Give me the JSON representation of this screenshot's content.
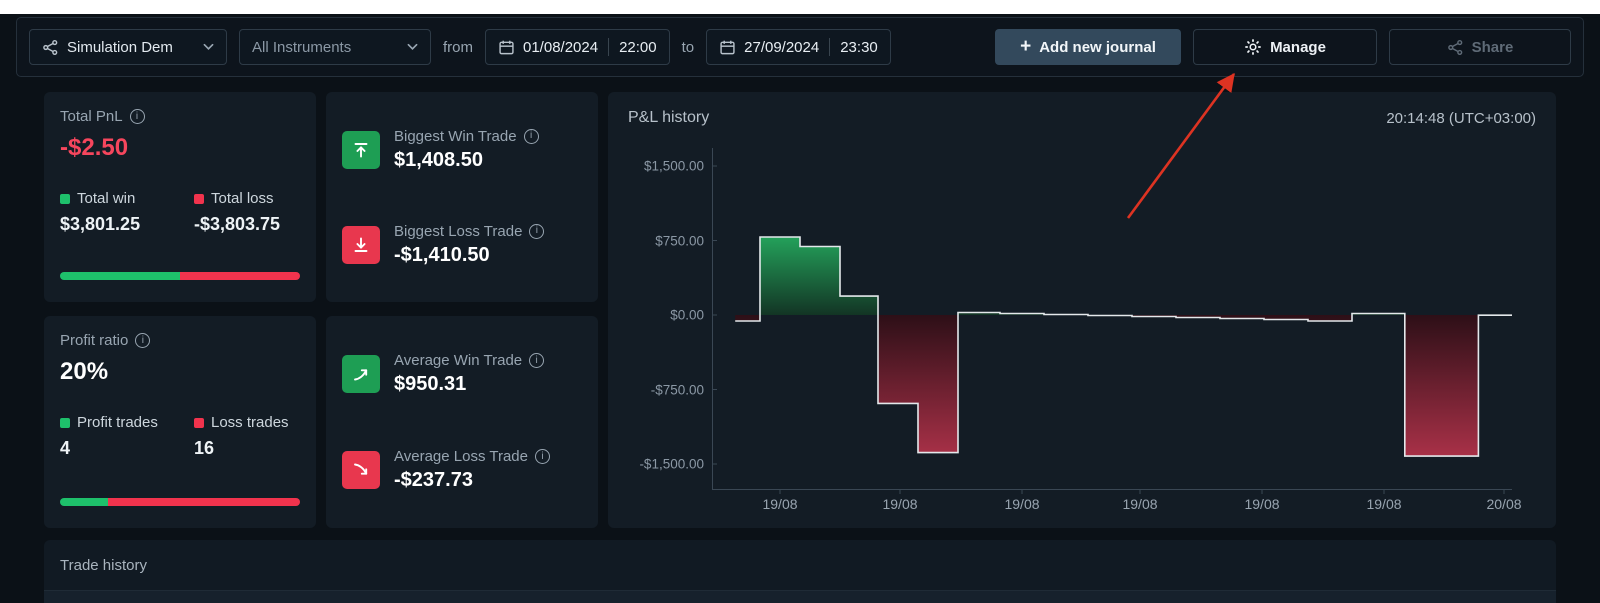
{
  "icons": {
    "info": "i",
    "plus": "+"
  },
  "toolbar": {
    "journal_select": {
      "label": "Simulation Dem"
    },
    "instrument_select": {
      "label": "All Instruments"
    },
    "from_label": "from",
    "to_label": "to",
    "date_from": {
      "date": "01/08/2024",
      "time": "22:00"
    },
    "date_to": {
      "date": "27/09/2024",
      "time": "23:30"
    },
    "add_journal_button": "Add new journal",
    "manage_button": "Manage",
    "share_button": "Share"
  },
  "cards": {
    "total_pnl": {
      "title": "Total PnL",
      "value": "-$2.50",
      "win_label": "Total win",
      "loss_label": "Total loss",
      "win_value": "$3,801.25",
      "loss_value": "-$3,803.75",
      "win_pct": 50
    },
    "profit_ratio": {
      "title": "Profit ratio",
      "value": "20%",
      "win_label": "Profit trades",
      "loss_label": "Loss trades",
      "win_value": "4",
      "loss_value": "16",
      "win_pct": 20
    },
    "biggest": {
      "win_label": "Biggest Win Trade",
      "win_value": "$1,408.50",
      "loss_label": "Biggest Loss Trade",
      "loss_value": "-$1,410.50"
    },
    "average": {
      "win_label": "Average Win Trade",
      "win_value": "$950.31",
      "loss_label": "Average Loss Trade",
      "loss_value": "-$237.73"
    }
  },
  "chart": {
    "title": "P&L history",
    "clock": "20:14:48 (UTC+03:00)"
  },
  "chart_data": {
    "type": "area",
    "title": "P&L history",
    "ylim": [
      -1800,
      1740
    ],
    "grid": false,
    "y_ticks": [
      {
        "label": "$1,500.00",
        "value": 1500
      },
      {
        "label": "$750.00",
        "value": 750
      },
      {
        "label": "$0.00",
        "value": 0
      },
      {
        "label": "-$750.00",
        "value": -750
      },
      {
        "label": "-$1,500.00",
        "value": -1500
      }
    ],
    "x_ticks": [
      {
        "label": "19/08",
        "x": 0.085
      },
      {
        "label": "19/08",
        "x": 0.235
      },
      {
        "label": "19/08",
        "x": 0.3875
      },
      {
        "label": "19/08",
        "x": 0.535
      },
      {
        "label": "19/08",
        "x": 0.6875
      },
      {
        "label": "19/08",
        "x": 0.84
      },
      {
        "label": "20/08",
        "x": 0.99
      }
    ],
    "points": [
      {
        "x": 0.029,
        "value": -60
      },
      {
        "x": 0.06,
        "value": 785
      },
      {
        "x": 0.11,
        "value": 690
      },
      {
        "x": 0.16,
        "value": 190
      },
      {
        "x": 0.2075,
        "value": -890
      },
      {
        "x": 0.2575,
        "value": -1385
      },
      {
        "x": 0.3075,
        "value": 25
      },
      {
        "x": 0.36,
        "value": 15
      },
      {
        "x": 0.415,
        "value": 5
      },
      {
        "x": 0.47,
        "value": -5
      },
      {
        "x": 0.525,
        "value": -15
      },
      {
        "x": 0.58,
        "value": -25
      },
      {
        "x": 0.635,
        "value": -35
      },
      {
        "x": 0.69,
        "value": -45
      },
      {
        "x": 0.745,
        "value": -60
      },
      {
        "x": 0.8,
        "value": 15
      },
      {
        "x": 0.866,
        "value": -1420
      },
      {
        "x": 0.958,
        "value": -2.5
      }
    ],
    "colors": {
      "positive": "#1f9e54",
      "negative": "#a93049",
      "line": "#e4e8eb"
    }
  },
  "trade_history": {
    "title": "Trade history"
  },
  "annotation": {
    "type": "arrow",
    "target": "manage-button",
    "color": "#dd3322"
  }
}
